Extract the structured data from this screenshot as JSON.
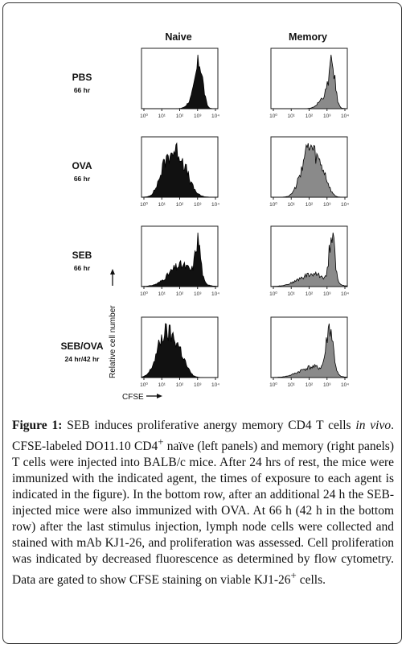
{
  "columns": [
    "Naive",
    "Memory"
  ],
  "rows": [
    {
      "label": "PBS",
      "sub": "66 hr"
    },
    {
      "label": "OVA",
      "sub": "66 hr"
    },
    {
      "label": "SEB",
      "sub": "66 hr"
    },
    {
      "label": "SEB/OVA",
      "sub": "24 hr/42 hr"
    }
  ],
  "tick_labels": [
    "10⁰",
    "10¹",
    "10²",
    "10³",
    "10⁴"
  ],
  "y_axis_label": "Relative cell number",
  "x_axis_label": "CFSE",
  "colors": {
    "naive_fill": "#111111",
    "memory_fill": "#8a8a8a",
    "axis": "#222222"
  },
  "caption": {
    "label": "Figure 1:",
    "text_1": " SEB induces proliferative anergy memory CD4 T cells ",
    "italic_1": "in vivo",
    "text_2": ". CFSE-labeled DO11.10 CD4",
    "sup_1": "+",
    "text_3": " naïve (left panels) and memory (right panels) T cells were injected into BALB/c mice. After 24 hrs of rest, the mice were immunized with the indicated agent, the times of exposure to each agent is indicated in the figure). In the bottom row, after an additional 24 h the SEB-injected mice were also immunized with OVA. At 66 h (42 h in the bottom row) after the last stimulus injection, lymph node cells were collected and stained with mAb KJ1-26, and proliferation was assessed. Cell proliferation was indicated by decreased fluorescence as determined by flow cytometry. Data are gated to show CFSE staining on viable KJ1-26",
    "sup_2": "+",
    "text_4": " cells."
  }
}
